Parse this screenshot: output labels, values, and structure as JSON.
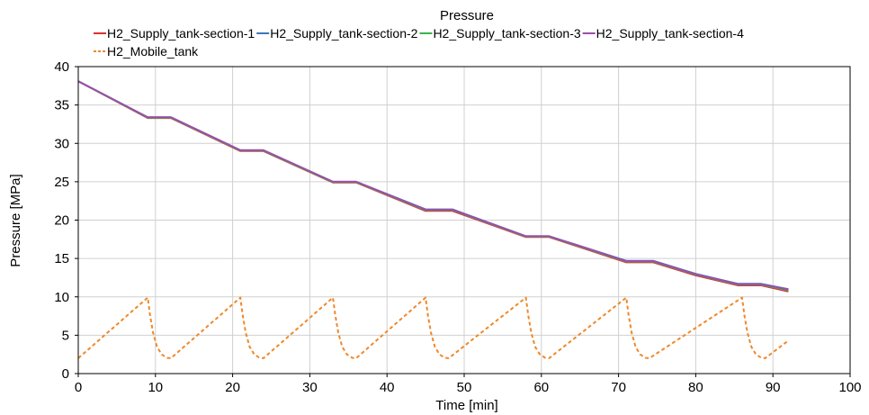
{
  "chart_data": {
    "type": "line",
    "title": "Pressure",
    "xlabel": "Time [min]",
    "ylabel": "Pressure [MPa]",
    "xlim": [
      0,
      100
    ],
    "ylim": [
      0,
      40
    ],
    "xticks": [
      "0",
      "10",
      "20",
      "30",
      "40",
      "50",
      "60",
      "70",
      "80",
      "90",
      "100"
    ],
    "yticks": [
      "0",
      "5",
      "10",
      "15",
      "20",
      "25",
      "30",
      "35",
      "40"
    ],
    "grid": true,
    "legend_position": "top",
    "series": [
      {
        "name": "H2_Supply_tank-section-1",
        "color": "#e03030",
        "dash": "solid",
        "x": [
          0,
          9,
          12,
          21,
          24,
          33,
          36,
          45,
          48.5,
          58,
          61,
          71,
          74.5,
          80,
          85.5,
          88.5,
          92
        ],
        "y": [
          38.1,
          33.3,
          33.3,
          29.0,
          29.0,
          24.9,
          24.9,
          21.2,
          21.2,
          17.8,
          17.8,
          14.5,
          14.5,
          12.8,
          11.5,
          11.5,
          10.7
        ]
      },
      {
        "name": "H2_Supply_tank-section-2",
        "color": "#3a78b8",
        "dash": "solid",
        "x": [
          0,
          9,
          12,
          21,
          24,
          33,
          36,
          45,
          48.5,
          58,
          61,
          71,
          74.5,
          80,
          85.5,
          88.5,
          92
        ],
        "y": [
          38.1,
          33.4,
          33.4,
          29.1,
          29.1,
          25.0,
          25.0,
          21.4,
          21.4,
          17.9,
          17.9,
          14.7,
          14.7,
          13.0,
          11.7,
          11.7,
          11.0
        ]
      },
      {
        "name": "H2_Supply_tank-section-3",
        "color": "#3cb44b",
        "dash": "solid",
        "x": [
          0,
          9,
          12,
          21,
          24,
          33,
          36,
          45,
          48.5,
          58,
          61,
          71,
          74.5,
          80,
          85.5,
          88.5,
          92
        ],
        "y": [
          38.1,
          33.35,
          33.35,
          29.05,
          29.05,
          24.95,
          24.95,
          21.3,
          21.3,
          17.85,
          17.85,
          14.6,
          14.6,
          12.9,
          11.6,
          11.6,
          10.85
        ]
      },
      {
        "name": "H2_Supply_tank-section-4",
        "color": "#9b4fa8",
        "dash": "solid",
        "x": [
          0,
          9,
          12,
          21,
          24,
          33,
          36,
          45,
          48.5,
          58,
          61,
          71,
          74.5,
          80,
          85.5,
          88.5,
          92
        ],
        "y": [
          38.1,
          33.4,
          33.4,
          29.1,
          29.1,
          25.0,
          25.0,
          21.35,
          21.35,
          17.9,
          17.9,
          14.65,
          14.65,
          12.95,
          11.65,
          11.65,
          10.95
        ]
      },
      {
        "name": "H2_Mobile_tank",
        "color": "#f0882a",
        "dash": "dashed",
        "x": [
          0,
          9,
          9.3,
          9.7,
          10.2,
          10.8,
          11.5,
          12,
          21,
          21.3,
          21.7,
          22.2,
          22.8,
          23.5,
          24,
          33,
          33.3,
          33.7,
          34.2,
          34.8,
          35.5,
          36,
          45,
          45.3,
          45.7,
          46.2,
          46.8,
          47.5,
          48,
          58,
          58.3,
          58.7,
          59.2,
          59.8,
          60.5,
          61,
          71,
          71.3,
          71.7,
          72.2,
          72.8,
          73.5,
          74,
          86,
          86.3,
          86.7,
          87.2,
          87.8,
          88.5,
          89,
          92
        ],
        "y": [
          2.0,
          9.9,
          7.6,
          5.3,
          3.5,
          2.5,
          2.05,
          2.0,
          9.9,
          7.6,
          5.3,
          3.5,
          2.5,
          2.05,
          2.0,
          9.9,
          7.6,
          5.3,
          3.5,
          2.5,
          2.05,
          2.0,
          9.9,
          7.6,
          5.3,
          3.5,
          2.5,
          2.05,
          2.0,
          9.9,
          7.6,
          5.3,
          3.5,
          2.5,
          2.05,
          2.0,
          9.9,
          7.6,
          5.3,
          3.5,
          2.5,
          2.05,
          2.0,
          9.9,
          7.6,
          5.3,
          3.5,
          2.5,
          2.05,
          2.0,
          4.3
        ]
      }
    ]
  }
}
